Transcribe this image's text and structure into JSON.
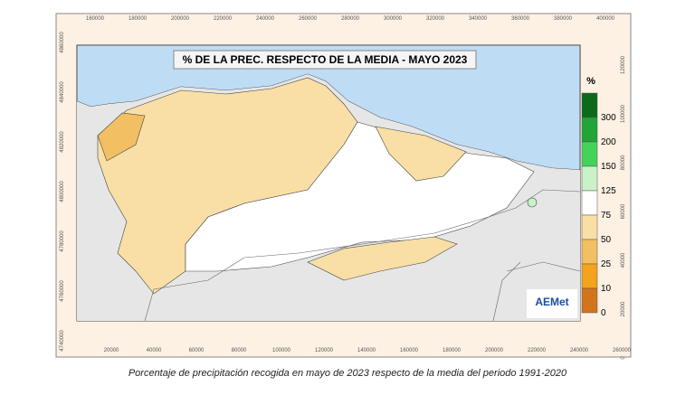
{
  "title": "% DE LA PREC. RESPECTO DE LA MEDIA - MAYO 2023",
  "caption": "Porcentaje de precipitación recogida en mayo de 2023 respecto de la media del periodo 1991-2020",
  "logo": "AEMet",
  "axes": {
    "top": [
      160000,
      180000,
      200000,
      220000,
      240000,
      260000,
      280000,
      300000,
      320000,
      340000,
      360000,
      380000,
      400000
    ],
    "bottom": [
      20000,
      40000,
      60000,
      80000,
      100000,
      120000,
      140000,
      160000,
      180000,
      200000,
      220000,
      240000,
      260000
    ],
    "left": [
      4860000,
      4840000,
      4820000,
      4800000,
      4780000,
      4760000,
      4740000
    ],
    "right": [
      120000,
      100000,
      80000,
      60000,
      40000,
      20000,
      0
    ]
  },
  "legend": {
    "title": "%",
    "items": [
      {
        "value": 300,
        "color": "#0b6b1a"
      },
      {
        "value": 200,
        "color": "#1fa637"
      },
      {
        "value": 150,
        "color": "#43d35a"
      },
      {
        "value": 125,
        "color": "#c9f2c9"
      },
      {
        "value": 75,
        "color": "#ffffff"
      },
      {
        "value": 50,
        "color": "#f9dfa6"
      },
      {
        "value": 25,
        "color": "#f2c062"
      },
      {
        "value": 10,
        "color": "#f5a21c"
      },
      {
        "value": 0,
        "color": "#d2751a"
      }
    ]
  }
}
